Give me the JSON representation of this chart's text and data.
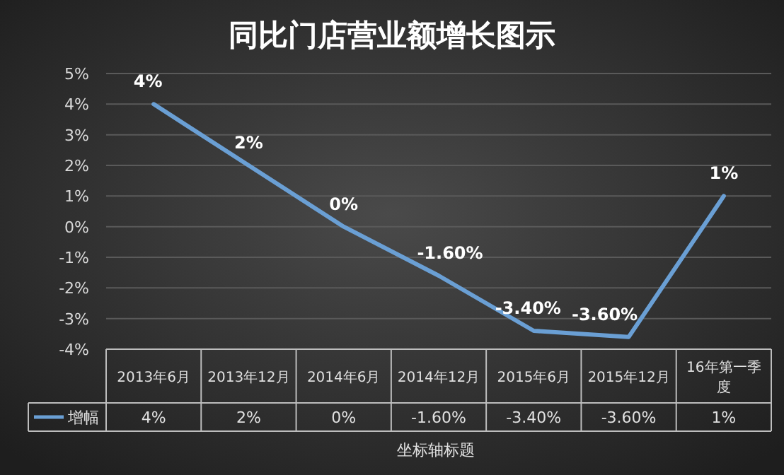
{
  "chart_data": {
    "type": "line",
    "title": "同比门店营业额增长图示",
    "xlabel": "坐标轴标题",
    "categories": [
      "2013年6月",
      "2013年12月",
      "2014年6月",
      "2014年12月",
      "2015年6月",
      "2015年12月",
      "16年第一季度"
    ],
    "series": [
      {
        "name": "增幅",
        "color": "#6a9fd4",
        "values": [
          4,
          2,
          0,
          -1.6,
          -3.4,
          -3.6,
          1
        ],
        "value_labels": [
          "4%",
          "2%",
          "0%",
          "-1.60%",
          "-3.40%",
          "-3.60%",
          "1%"
        ]
      }
    ],
    "ylim": [
      -4,
      5
    ],
    "yticks": [
      {
        "value": -4,
        "label": "-4%"
      },
      {
        "value": -3,
        "label": "-3%"
      },
      {
        "value": -2,
        "label": "-2%"
      },
      {
        "value": -1,
        "label": "-1%"
      },
      {
        "value": 0,
        "label": "0%"
      },
      {
        "value": 1,
        "label": "1%"
      },
      {
        "value": 2,
        "label": "2%"
      },
      {
        "value": 3,
        "label": "3%"
      },
      {
        "value": 4,
        "label": "4%"
      },
      {
        "value": 5,
        "label": "5%"
      }
    ],
    "grid": "y",
    "legend": "bottom",
    "line_style": "solid",
    "marker": "none"
  }
}
